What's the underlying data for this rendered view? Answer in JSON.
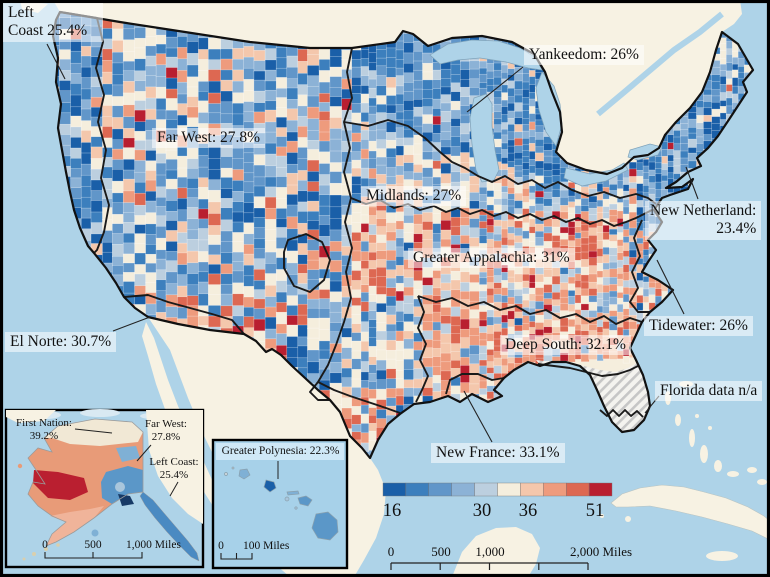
{
  "regions": {
    "left_coast_l1": "Left",
    "left_coast_l2": "Coast 25.4%",
    "yankeedom": "Yankeedom: 26%",
    "far_west": "Far West: 27.8%",
    "midlands": "Midlands: 27%",
    "new_netherland_l1": "New Netherland:",
    "new_netherland_l2": "23.4%",
    "greater_appalachia": "Greater Appalachia: 31%",
    "el_norte": "El Norte: 30.7%",
    "tidewater": "Tidewater: 26%",
    "deep_south": "Deep South: 32.1%",
    "florida": "Florida data n/a",
    "new_france": "New France: 33.1%"
  },
  "alaska_inset": {
    "first_nation_l1": "First Nation:",
    "first_nation_l2": "39.2%",
    "far_west_l1": "Far West:",
    "far_west_l2": "27.8%",
    "left_coast_l1": "Left Coast:",
    "left_coast_l2": "25.4%",
    "scale_0": "0",
    "scale_mid": "500",
    "scale_end": "1,000 Miles"
  },
  "hawaii_inset": {
    "label": "Greater Polynesia: 22.3%",
    "scale_0": "0",
    "scale_end": "100 Miles"
  },
  "legend": {
    "tick_labels": [
      "16",
      "30",
      "36",
      "51"
    ],
    "colors": [
      "#1a5fa8",
      "#3c7fbd",
      "#6196c9",
      "#8cb2d6",
      "#bccfdf",
      "#f5eedd",
      "#f4c7ac",
      "#ee9b7d",
      "#dd6852",
      "#b91f30"
    ]
  },
  "scale_bar": {
    "t0": "0",
    "t1": "500",
    "t2": "1,000",
    "t3": "2,000 Miles"
  },
  "colors": {
    "ocean": "#aed3e8",
    "foreign_land": "#f7f2e3",
    "florida_hatch": "#c6c6c6",
    "boundary": "#1a1a1a"
  }
}
